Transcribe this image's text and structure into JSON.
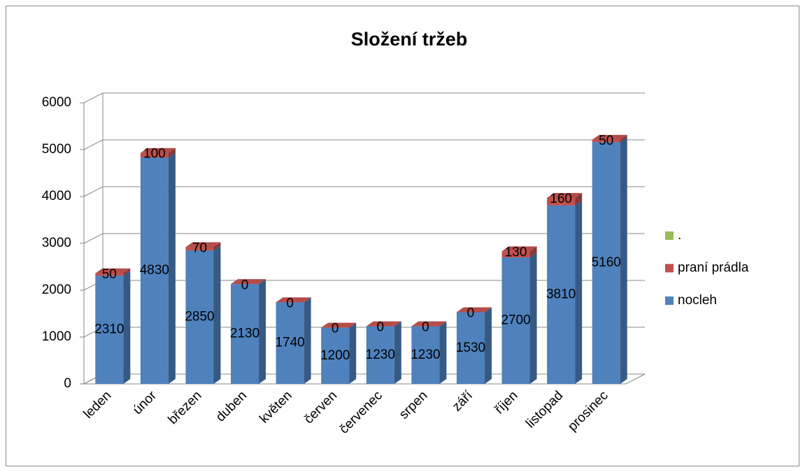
{
  "chart_data": {
    "type": "bar3d_stacked",
    "title": "Složení tržeb",
    "categories": [
      "leden",
      "únor",
      "březen",
      "duben",
      "květen",
      "červen",
      "červenec",
      "srpen",
      "září",
      "říjen",
      "listopad",
      "prosinec"
    ],
    "series": [
      {
        "name": "nocleh",
        "color": "#4f81bd",
        "values": [
          2310,
          4830,
          2850,
          2130,
          1740,
          1200,
          1230,
          1230,
          1530,
          2700,
          3810,
          5160
        ]
      },
      {
        "name": "praní prádla",
        "color": "#c0504d",
        "values": [
          50,
          100,
          70,
          0,
          0,
          0,
          0,
          0,
          0,
          130,
          160,
          50
        ]
      },
      {
        "name": ".",
        "color": "#9bbb59"
      }
    ],
    "ylim": [
      0,
      6000
    ],
    "yticks": [
      0,
      1000,
      2000,
      3000,
      4000,
      5000,
      6000
    ],
    "grid": true,
    "legend": "right"
  }
}
